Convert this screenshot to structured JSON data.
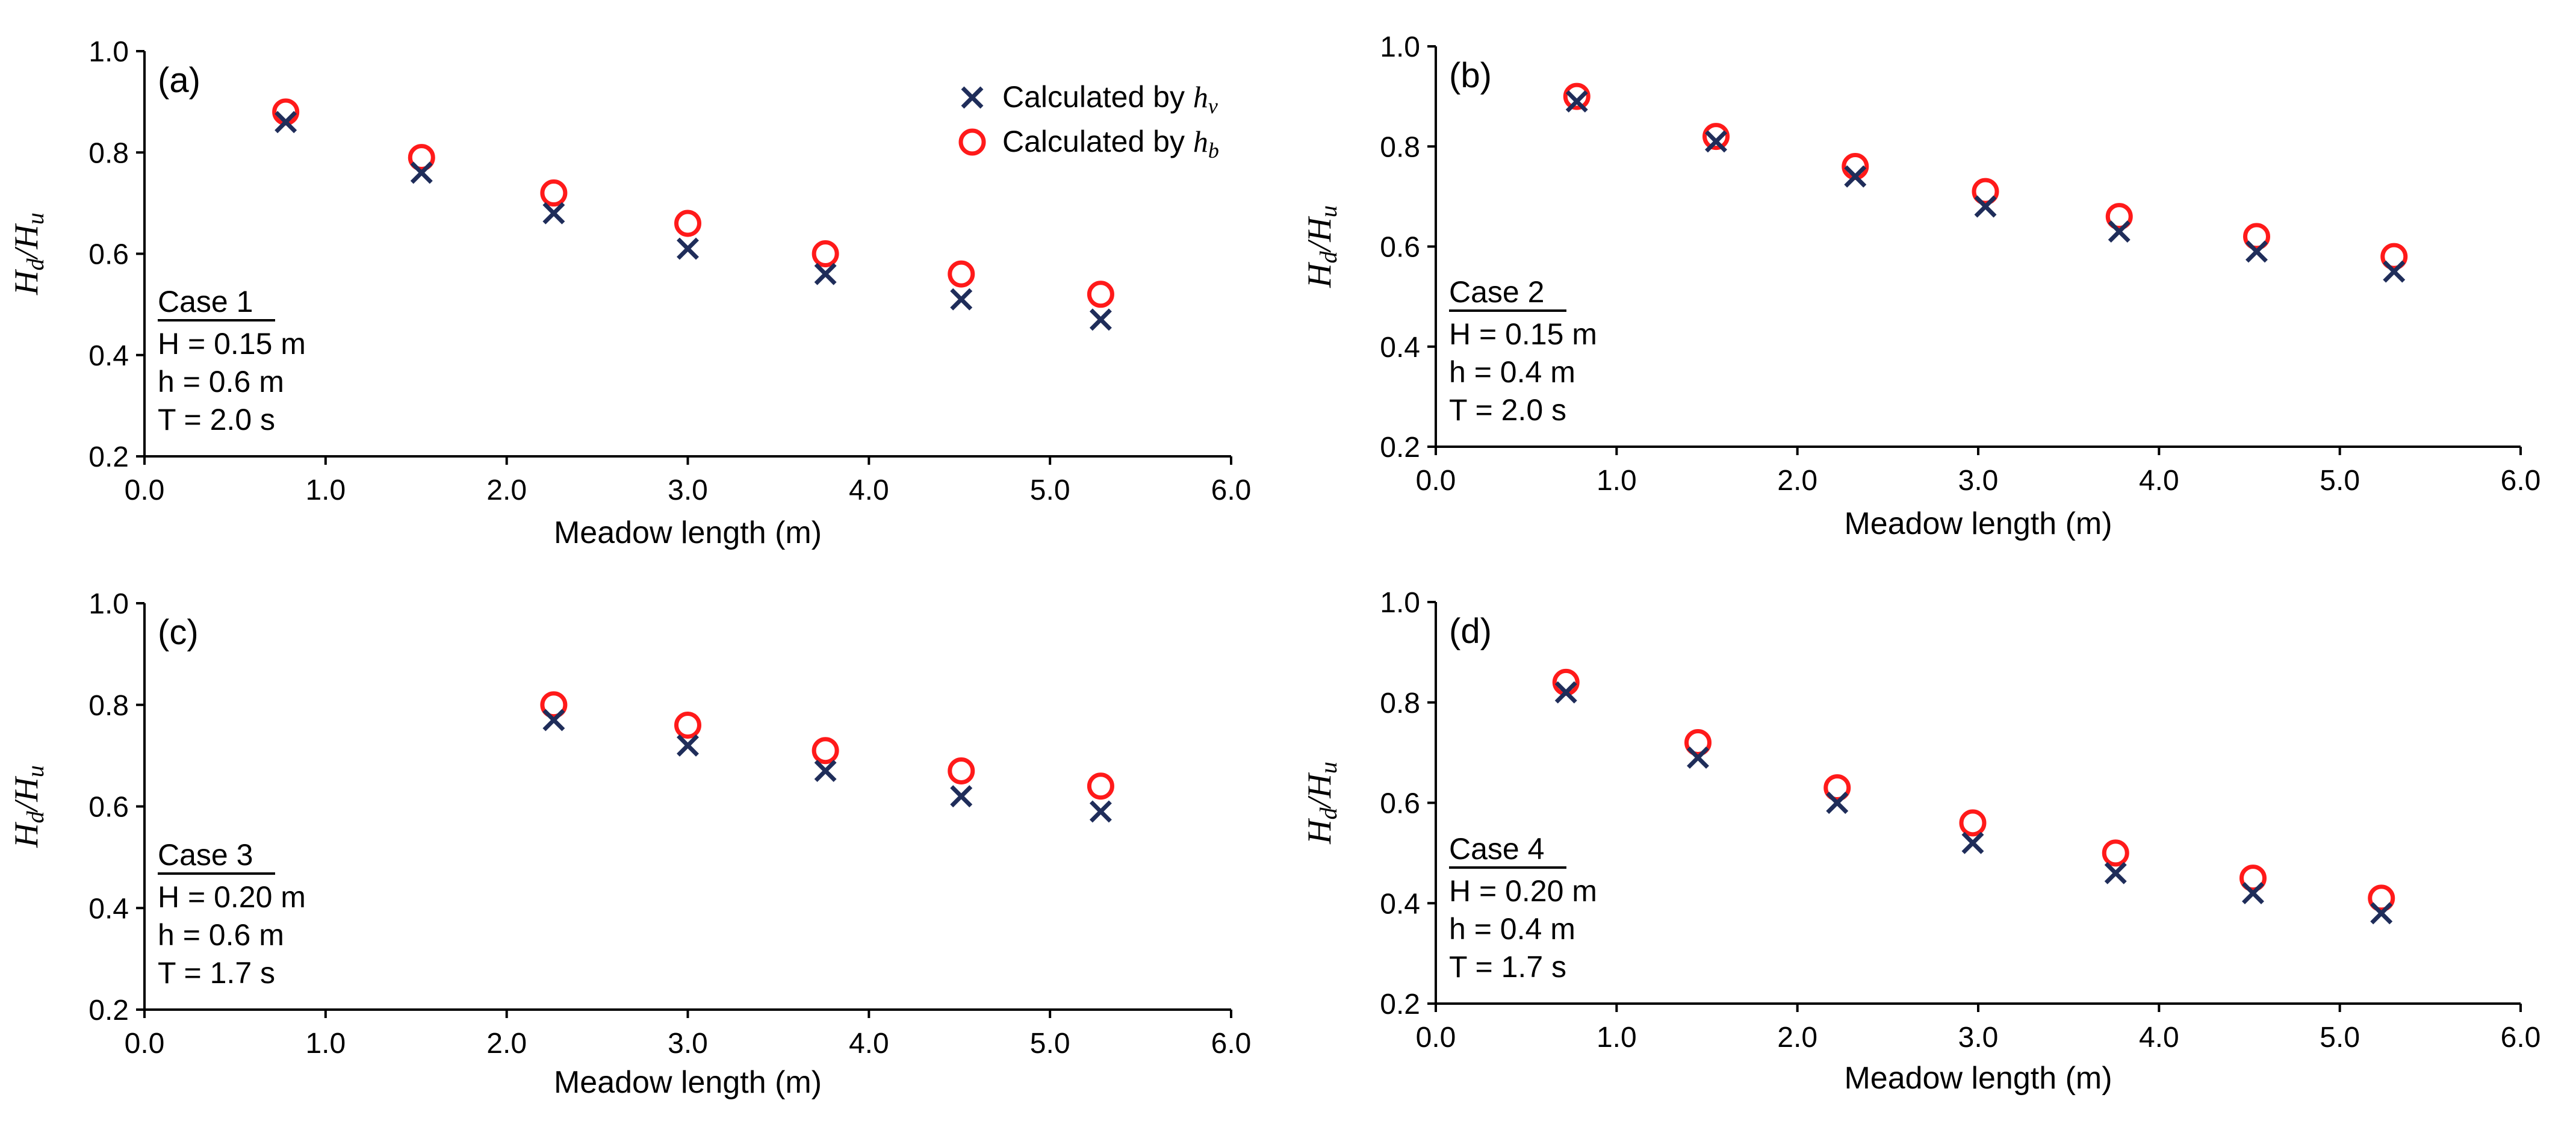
{
  "colors": {
    "series_hv": "#1f2d5a",
    "series_hb": "#ff1a1a",
    "axis": "#000000"
  },
  "legend": {
    "location": "top-right of panel (a)",
    "series_hv": {
      "prefix": "Calculated by ",
      "symbol": "h",
      "subscript": "v"
    },
    "series_hb": {
      "prefix": "Calculated by ",
      "symbol": "h",
      "subscript": "b"
    }
  },
  "chart_data": [
    {
      "type": "scatter",
      "panel_label": "(a)",
      "title": "",
      "xlabel": "Meadow length (m)",
      "ylabel": {
        "num": "H",
        "num_sub": "d",
        "den": "H",
        "den_sub": "u"
      },
      "xlim": [
        0.0,
        6.0
      ],
      "ylim": [
        0.2,
        1.0
      ],
      "xticks": [
        "0.0",
        "1.0",
        "2.0",
        "3.0",
        "4.0",
        "5.0",
        "6.0"
      ],
      "yticks": [
        "0.2",
        "0.4",
        "0.6",
        "0.8",
        "1.0"
      ],
      "grid": false,
      "case_info": {
        "title": "Case 1",
        "lines": [
          "H = 0.15 m",
          "h = 0.6 m",
          "T = 2.0 s"
        ]
      },
      "series": [
        {
          "name": "Calculated by hv",
          "marker": "x",
          "x": [
            0.78,
            1.53,
            2.26,
            3.0,
            3.76,
            4.51,
            5.28
          ],
          "y": [
            0.86,
            0.76,
            0.68,
            0.61,
            0.56,
            0.51,
            0.47
          ]
        },
        {
          "name": "Calculated by hb",
          "marker": "circle",
          "x": [
            0.78,
            1.53,
            2.26,
            3.0,
            3.76,
            4.51,
            5.28
          ],
          "y": [
            0.88,
            0.79,
            0.72,
            0.66,
            0.6,
            0.56,
            0.52
          ]
        }
      ]
    },
    {
      "type": "scatter",
      "panel_label": "(b)",
      "title": "",
      "xlabel": "Meadow length (m)",
      "ylabel": {
        "num": "H",
        "num_sub": "d",
        "den": "H",
        "den_sub": "u"
      },
      "xlim": [
        0.0,
        6.0
      ],
      "ylim": [
        0.2,
        1.0
      ],
      "xticks": [
        "0.0",
        "1.0",
        "2.0",
        "3.0",
        "4.0",
        "5.0",
        "6.0"
      ],
      "yticks": [
        "0.2",
        "0.4",
        "0.6",
        "0.8",
        "1.0"
      ],
      "grid": false,
      "case_info": {
        "title": "Case 2",
        "lines": [
          "H = 0.15 m",
          "h = 0.4 m",
          "T = 2.0 s"
        ]
      },
      "series": [
        {
          "name": "Calculated by hv",
          "marker": "x",
          "x": [
            0.78,
            1.55,
            2.32,
            3.04,
            3.78,
            4.54,
            5.3
          ],
          "y": [
            0.89,
            0.81,
            0.74,
            0.68,
            0.63,
            0.59,
            0.55
          ]
        },
        {
          "name": "Calculated by hb",
          "marker": "circle",
          "x": [
            0.78,
            1.55,
            2.32,
            3.04,
            3.78,
            4.54,
            5.3
          ],
          "y": [
            0.9,
            0.82,
            0.76,
            0.71,
            0.66,
            0.62,
            0.58
          ]
        }
      ]
    },
    {
      "type": "scatter",
      "panel_label": "(c)",
      "title": "",
      "xlabel": "Meadow length (m)",
      "ylabel": {
        "num": "H",
        "num_sub": "d",
        "den": "H",
        "den_sub": "u"
      },
      "xlim": [
        0.0,
        6.0
      ],
      "ylim": [
        0.2,
        1.0
      ],
      "xticks": [
        "0.0",
        "1.0",
        "2.0",
        "3.0",
        "4.0",
        "5.0",
        "6.0"
      ],
      "yticks": [
        "0.2",
        "0.4",
        "0.6",
        "0.8",
        "1.0"
      ],
      "grid": false,
      "case_info": {
        "title": "Case 3",
        "lines": [
          "H = 0.20 m",
          "h = 0.6 m",
          "T = 1.7 s"
        ]
      },
      "series": [
        {
          "name": "Calculated by hv",
          "marker": "x",
          "x": [
            2.26,
            3.0,
            3.76,
            4.51,
            5.28
          ],
          "y": [
            0.77,
            0.72,
            0.67,
            0.62,
            0.59
          ]
        },
        {
          "name": "Calculated by hb",
          "marker": "circle",
          "x": [
            2.26,
            3.0,
            3.76,
            4.51,
            5.28
          ],
          "y": [
            0.8,
            0.76,
            0.71,
            0.67,
            0.64
          ]
        }
      ]
    },
    {
      "type": "scatter",
      "panel_label": "(d)",
      "title": "",
      "xlabel": "Meadow length (m)",
      "ylabel": {
        "num": "H",
        "num_sub": "d",
        "den": "H",
        "den_sub": "u"
      },
      "xlim": [
        0.0,
        6.0
      ],
      "ylim": [
        0.2,
        1.0
      ],
      "xticks": [
        "0.0",
        "1.0",
        "2.0",
        "3.0",
        "4.0",
        "5.0",
        "6.0"
      ],
      "yticks": [
        "0.2",
        "0.4",
        "0.6",
        "0.8",
        "1.0"
      ],
      "grid": false,
      "case_info": {
        "title": "Case 4",
        "lines": [
          "H = 0.20 m",
          "h = 0.4 m",
          "T = 1.7 s"
        ]
      },
      "series": [
        {
          "name": "Calculated by hv",
          "marker": "x",
          "x": [
            0.72,
            1.45,
            2.22,
            2.97,
            3.76,
            4.52,
            5.23
          ],
          "y": [
            0.82,
            0.69,
            0.6,
            0.52,
            0.46,
            0.42,
            0.38
          ]
        },
        {
          "name": "Calculated by hb",
          "marker": "circle",
          "x": [
            0.72,
            1.45,
            2.22,
            2.97,
            3.76,
            4.52,
            5.23
          ],
          "y": [
            0.84,
            0.72,
            0.63,
            0.56,
            0.5,
            0.45,
            0.41
          ]
        }
      ]
    }
  ]
}
